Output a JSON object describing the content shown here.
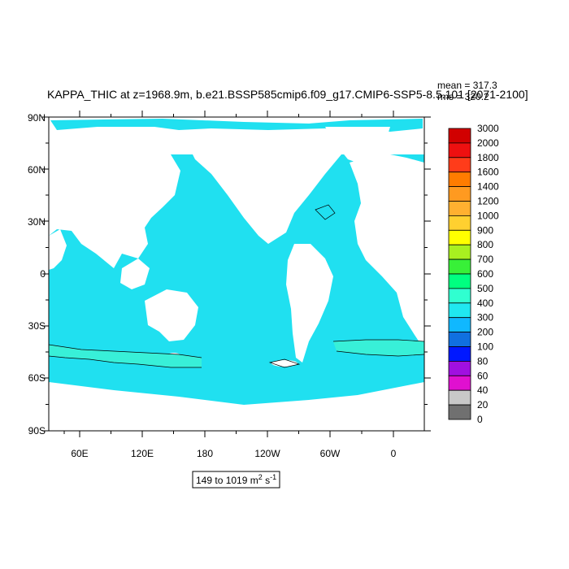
{
  "figure": {
    "title": "KAPPA_THIC at z=1968.9m, b.e21.BSSP585cmip6.f09_g17.CMIP6-SSP5-8.5.101 [2071-2100]",
    "mean_label": "mean = 317.3",
    "rms_label": "rms = 320.2",
    "range_label": "149 to 1019 m",
    "range_unit_sup": "2",
    "range_unit_s": " s",
    "range_unit_sup2": "-1"
  },
  "map": {
    "lat_labels": [
      "90N",
      "60N",
      "30N",
      "0",
      "30S",
      "60S",
      "90S"
    ],
    "lon_labels": [
      "60E",
      "120E",
      "180",
      "120W",
      "60W",
      "0"
    ],
    "ocean_color": "#20e0f0",
    "land_color": "#ffffff",
    "band_color": "#38f0d8"
  },
  "colorbar": {
    "levels": [
      "3000",
      "2000",
      "1800",
      "1600",
      "1400",
      "1200",
      "1000",
      "900",
      "800",
      "700",
      "600",
      "500",
      "400",
      "300",
      "200",
      "100",
      "80",
      "60",
      "40",
      "20",
      "0"
    ],
    "colors": [
      "#d10000",
      "#ee1010",
      "#ff3c1a",
      "#ff7c00",
      "#ff9a20",
      "#ffb030",
      "#ffd030",
      "#ffff00",
      "#a8f020",
      "#38f038",
      "#00ff80",
      "#30ffd0",
      "#20e8f0",
      "#10b8ff",
      "#1070e0",
      "#0018ff",
      "#a010e0",
      "#e010d0",
      "#c8c8c8",
      "#707070"
    ]
  }
}
